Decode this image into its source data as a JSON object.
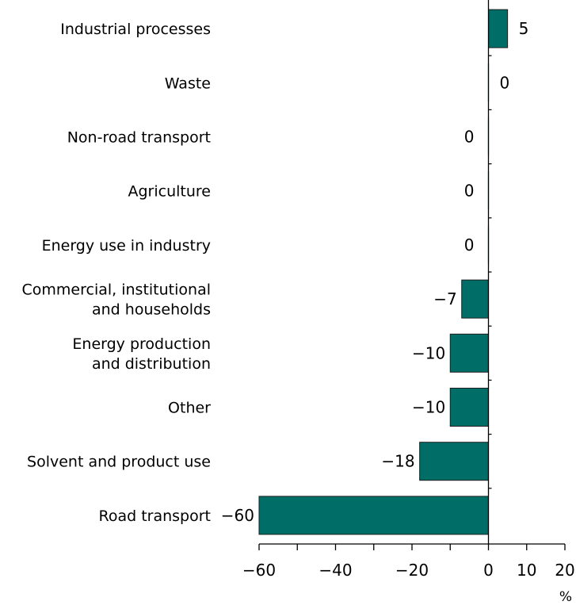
{
  "chart_data": {
    "type": "bar",
    "orientation": "horizontal",
    "title": "",
    "xlabel": "%",
    "ylabel": "",
    "xlim": [
      -60,
      20
    ],
    "x_ticks": [
      -60,
      -40,
      -20,
      0,
      10,
      20
    ],
    "x_tick_labels": [
      "−60",
      "−40",
      "−20",
      "0",
      "10",
      "20"
    ],
    "x_minor_ticks": [
      -50,
      -30,
      -10
    ],
    "grid": false,
    "legend": "none",
    "bar_color": "#006e66",
    "bar_edge_color": "#1e1e1e",
    "categories": [
      [
        "Industrial processes"
      ],
      [
        "Waste"
      ],
      [
        "Non-road transport"
      ],
      [
        "Agriculture"
      ],
      [
        "Energy use in industry"
      ],
      [
        "Commercial, institutional",
        "and households"
      ],
      [
        "Energy production",
        "and distribution"
      ],
      [
        "Other"
      ],
      [
        "Solvent and product use"
      ],
      [
        "Road transport"
      ]
    ],
    "values": [
      5,
      0,
      0,
      0,
      0,
      -7,
      -10,
      -10,
      -18,
      -60
    ],
    "value_labels": [
      "5",
      "0",
      "0",
      "0",
      "0",
      "−7",
      "−10",
      "−10",
      "−18",
      "−60"
    ]
  }
}
